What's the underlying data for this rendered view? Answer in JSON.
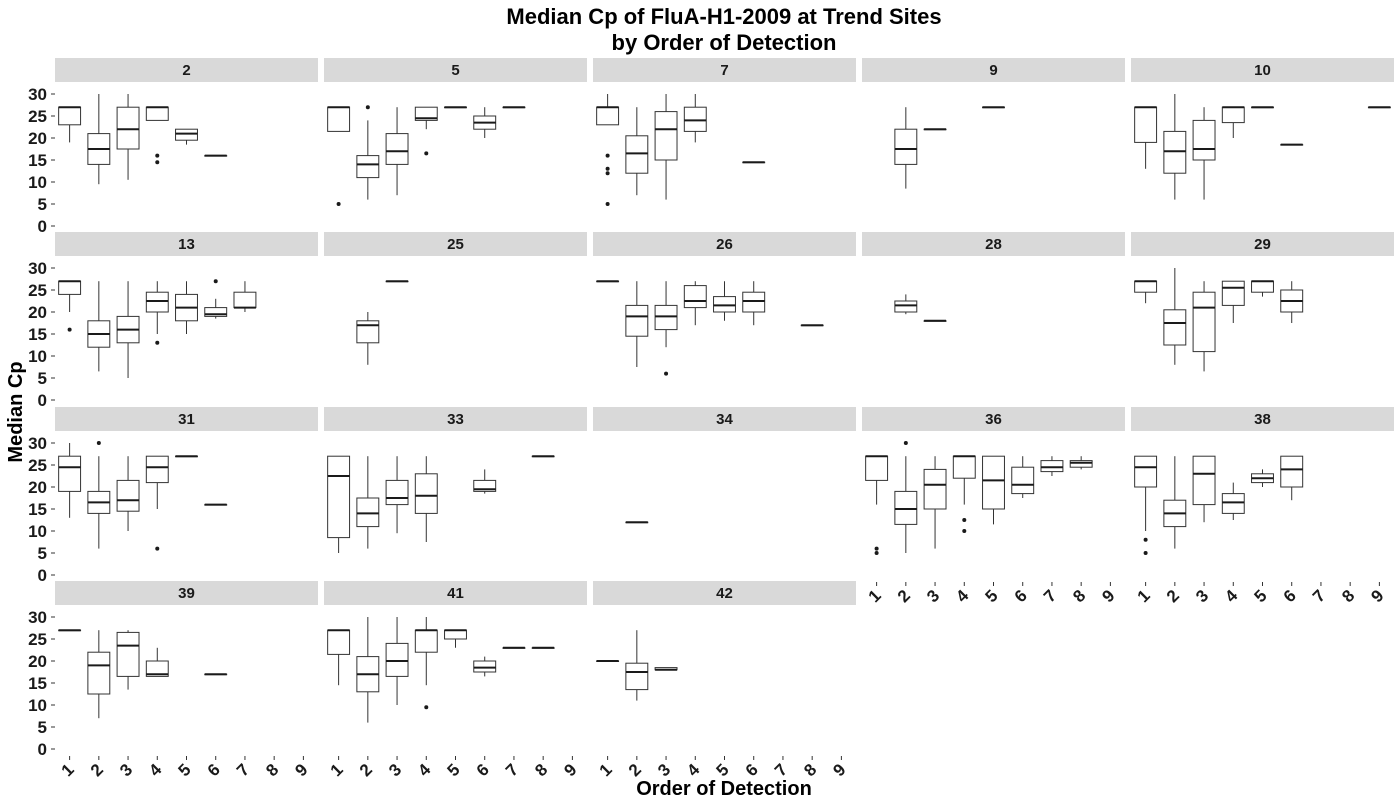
{
  "chart_data": {
    "type": "box",
    "title": "Median Cp of FluA-H1-2009 at Trend Sites",
    "subtitle": "by Order of Detection",
    "xlabel": "Order of Detection",
    "ylabel": "Median Cp",
    "x_ticks": [
      "1",
      "2",
      "3",
      "4",
      "5",
      "6",
      "7",
      "8",
      "9"
    ],
    "y_ticks": [
      0,
      5,
      10,
      15,
      20,
      25,
      30
    ],
    "ylim": [
      0,
      30
    ],
    "facet_layout": "5 columns x 4 rows, facet strips on top",
    "facets": [
      {
        "site": "2",
        "boxes": [
          {
            "x": 1,
            "q1": 23,
            "median": 27,
            "q3": 27,
            "lo": 19,
            "hi": 27,
            "out": []
          },
          {
            "x": 2,
            "q1": 14,
            "median": 17.5,
            "q3": 21,
            "lo": 9.5,
            "hi": 30,
            "out": []
          },
          {
            "x": 3,
            "q1": 17.5,
            "median": 22,
            "q3": 27,
            "lo": 10.5,
            "hi": 30,
            "out": []
          },
          {
            "x": 4,
            "q1": 24,
            "median": 27,
            "q3": 27,
            "lo": 24,
            "hi": 27,
            "out": [
              16,
              14.5
            ]
          },
          {
            "x": 5,
            "q1": 19.5,
            "median": 21,
            "q3": 22,
            "lo": 18.5,
            "hi": 22,
            "out": []
          },
          {
            "x": 6,
            "q1": 16,
            "median": 16,
            "q3": 16,
            "lo": 16,
            "hi": 16,
            "out": []
          }
        ]
      },
      {
        "site": "5",
        "boxes": [
          {
            "x": 1,
            "q1": 21.5,
            "median": 27,
            "q3": 27,
            "lo": 21.5,
            "hi": 27,
            "out": [
              5
            ]
          },
          {
            "x": 2,
            "q1": 11,
            "median": 14,
            "q3": 16,
            "lo": 6,
            "hi": 24,
            "out": [
              27
            ]
          },
          {
            "x": 3,
            "q1": 14,
            "median": 17,
            "q3": 21,
            "lo": 7,
            "hi": 27,
            "out": []
          },
          {
            "x": 4,
            "q1": 24,
            "median": 24.5,
            "q3": 27,
            "lo": 22,
            "hi": 27,
            "out": [
              16.5
            ]
          },
          {
            "x": 5,
            "q1": 27,
            "median": 27,
            "q3": 27,
            "lo": 27,
            "hi": 27,
            "out": []
          },
          {
            "x": 6,
            "q1": 22,
            "median": 23.5,
            "q3": 25,
            "lo": 20,
            "hi": 27,
            "out": []
          },
          {
            "x": 7,
            "q1": 27,
            "median": 27,
            "q3": 27,
            "lo": 27,
            "hi": 27,
            "out": []
          }
        ]
      },
      {
        "site": "7",
        "boxes": [
          {
            "x": 1,
            "q1": 23,
            "median": 27,
            "q3": 27,
            "lo": 23,
            "hi": 30,
            "out": [
              16,
              13,
              12,
              5
            ]
          },
          {
            "x": 2,
            "q1": 12,
            "median": 16.5,
            "q3": 20.5,
            "lo": 7,
            "hi": 27,
            "out": []
          },
          {
            "x": 3,
            "q1": 15,
            "median": 22,
            "q3": 26,
            "lo": 6,
            "hi": 30,
            "out": []
          },
          {
            "x": 4,
            "q1": 21.5,
            "median": 24,
            "q3": 27,
            "lo": 19,
            "hi": 30,
            "out": []
          },
          {
            "x": 6,
            "q1": 14.5,
            "median": 14.5,
            "q3": 14.5,
            "lo": 14.5,
            "hi": 14.5,
            "out": []
          }
        ]
      },
      {
        "site": "9",
        "boxes": [
          {
            "x": 2,
            "q1": 14,
            "median": 17.5,
            "q3": 22,
            "lo": 8.5,
            "hi": 27,
            "out": []
          },
          {
            "x": 3,
            "q1": 22,
            "median": 22,
            "q3": 22,
            "lo": 22,
            "hi": 22,
            "out": []
          },
          {
            "x": 5,
            "q1": 27,
            "median": 27,
            "q3": 27,
            "lo": 27,
            "hi": 27,
            "out": []
          }
        ]
      },
      {
        "site": "10",
        "boxes": [
          {
            "x": 1,
            "q1": 19,
            "median": 27,
            "q3": 27,
            "lo": 13,
            "hi": 27,
            "out": []
          },
          {
            "x": 2,
            "q1": 12,
            "median": 17,
            "q3": 21.5,
            "lo": 6,
            "hi": 30,
            "out": []
          },
          {
            "x": 3,
            "q1": 15,
            "median": 17.5,
            "q3": 24,
            "lo": 6,
            "hi": 27,
            "out": []
          },
          {
            "x": 4,
            "q1": 23.5,
            "median": 27,
            "q3": 27,
            "lo": 20,
            "hi": 27,
            "out": []
          },
          {
            "x": 5,
            "q1": 27,
            "median": 27,
            "q3": 27,
            "lo": 27,
            "hi": 27,
            "out": []
          },
          {
            "x": 6,
            "q1": 18.5,
            "median": 18.5,
            "q3": 18.5,
            "lo": 18.5,
            "hi": 18.5,
            "out": []
          },
          {
            "x": 9,
            "q1": 27,
            "median": 27,
            "q3": 27,
            "lo": 27,
            "hi": 27,
            "out": []
          }
        ]
      },
      {
        "site": "13",
        "boxes": [
          {
            "x": 1,
            "q1": 24,
            "median": 27,
            "q3": 27,
            "lo": 20,
            "hi": 27,
            "out": [
              16
            ]
          },
          {
            "x": 2,
            "q1": 12,
            "median": 15,
            "q3": 18,
            "lo": 6.5,
            "hi": 27,
            "out": []
          },
          {
            "x": 3,
            "q1": 13,
            "median": 16,
            "q3": 19,
            "lo": 5,
            "hi": 27,
            "out": []
          },
          {
            "x": 4,
            "q1": 20,
            "median": 22.5,
            "q3": 24.5,
            "lo": 15,
            "hi": 27,
            "out": [
              13
            ]
          },
          {
            "x": 5,
            "q1": 18,
            "median": 21,
            "q3": 24,
            "lo": 15,
            "hi": 27,
            "out": []
          },
          {
            "x": 6,
            "q1": 19,
            "median": 19.5,
            "q3": 21,
            "lo": 18.5,
            "hi": 23,
            "out": [
              27
            ]
          },
          {
            "x": 7,
            "q1": 21,
            "median": 21,
            "q3": 24.5,
            "lo": 20,
            "hi": 27,
            "out": []
          }
        ]
      },
      {
        "site": "25",
        "boxes": [
          {
            "x": 2,
            "q1": 13,
            "median": 17,
            "q3": 18,
            "lo": 8,
            "hi": 20,
            "out": []
          },
          {
            "x": 3,
            "q1": 27,
            "median": 27,
            "q3": 27,
            "lo": 27,
            "hi": 27,
            "out": []
          }
        ]
      },
      {
        "site": "26",
        "boxes": [
          {
            "x": 1,
            "q1": 27,
            "median": 27,
            "q3": 27,
            "lo": 27,
            "hi": 27,
            "out": []
          },
          {
            "x": 2,
            "q1": 14.5,
            "median": 19,
            "q3": 21.5,
            "lo": 7.5,
            "hi": 27,
            "out": []
          },
          {
            "x": 3,
            "q1": 16,
            "median": 19,
            "q3": 21.5,
            "lo": 12,
            "hi": 27,
            "out": [
              6
            ]
          },
          {
            "x": 4,
            "q1": 21,
            "median": 22.5,
            "q3": 26,
            "lo": 17,
            "hi": 27,
            "out": []
          },
          {
            "x": 5,
            "q1": 20,
            "median": 21.5,
            "q3": 23.5,
            "lo": 18,
            "hi": 27,
            "out": []
          },
          {
            "x": 6,
            "q1": 20,
            "median": 22.5,
            "q3": 24.5,
            "lo": 17,
            "hi": 27,
            "out": []
          },
          {
            "x": 8,
            "q1": 17,
            "median": 17,
            "q3": 17,
            "lo": 17,
            "hi": 17,
            "out": []
          }
        ]
      },
      {
        "site": "28",
        "boxes": [
          {
            "x": 2,
            "q1": 20,
            "median": 21.5,
            "q3": 22.5,
            "lo": 19.5,
            "hi": 24,
            "out": []
          },
          {
            "x": 3,
            "q1": 18,
            "median": 18,
            "q3": 18,
            "lo": 18,
            "hi": 18,
            "out": []
          }
        ]
      },
      {
        "site": "29",
        "boxes": [
          {
            "x": 1,
            "q1": 24.5,
            "median": 27,
            "q3": 27,
            "lo": 22,
            "hi": 27,
            "out": []
          },
          {
            "x": 2,
            "q1": 12.5,
            "median": 17.5,
            "q3": 20.5,
            "lo": 8,
            "hi": 30,
            "out": []
          },
          {
            "x": 3,
            "q1": 11,
            "median": 21,
            "q3": 24.5,
            "lo": 6.5,
            "hi": 27,
            "out": []
          },
          {
            "x": 4,
            "q1": 21.5,
            "median": 25.5,
            "q3": 27,
            "lo": 17.5,
            "hi": 27,
            "out": []
          },
          {
            "x": 5,
            "q1": 24.5,
            "median": 27,
            "q3": 27,
            "lo": 23.5,
            "hi": 27,
            "out": []
          },
          {
            "x": 6,
            "q1": 20,
            "median": 22.5,
            "q3": 25,
            "lo": 17.5,
            "hi": 27,
            "out": []
          }
        ]
      },
      {
        "site": "31",
        "boxes": [
          {
            "x": 1,
            "q1": 19,
            "median": 24.5,
            "q3": 27,
            "lo": 13,
            "hi": 30,
            "out": []
          },
          {
            "x": 2,
            "q1": 14,
            "median": 16.5,
            "q3": 19,
            "lo": 6,
            "hi": 27,
            "out": [
              30
            ]
          },
          {
            "x": 3,
            "q1": 14.5,
            "median": 17,
            "q3": 21.5,
            "lo": 10,
            "hi": 27,
            "out": []
          },
          {
            "x": 4,
            "q1": 21,
            "median": 24.5,
            "q3": 27,
            "lo": 15,
            "hi": 27,
            "out": [
              6
            ]
          },
          {
            "x": 5,
            "q1": 27,
            "median": 27,
            "q3": 27,
            "lo": 27,
            "hi": 27,
            "out": []
          },
          {
            "x": 6,
            "q1": 16,
            "median": 16,
            "q3": 16,
            "lo": 16,
            "hi": 16,
            "out": []
          }
        ]
      },
      {
        "site": "33",
        "boxes": [
          {
            "x": 1,
            "q1": 8.5,
            "median": 22.5,
            "q3": 27,
            "lo": 5,
            "hi": 27,
            "out": []
          },
          {
            "x": 2,
            "q1": 11,
            "median": 14,
            "q3": 17.5,
            "lo": 6,
            "hi": 27,
            "out": []
          },
          {
            "x": 3,
            "q1": 16,
            "median": 17.5,
            "q3": 21.5,
            "lo": 9.5,
            "hi": 27,
            "out": []
          },
          {
            "x": 4,
            "q1": 14,
            "median": 18,
            "q3": 23,
            "lo": 7.5,
            "hi": 27,
            "out": []
          },
          {
            "x": 6,
            "q1": 19,
            "median": 19.5,
            "q3": 21.5,
            "lo": 18.5,
            "hi": 24,
            "out": []
          },
          {
            "x": 8,
            "q1": 27,
            "median": 27,
            "q3": 27,
            "lo": 27,
            "hi": 27,
            "out": []
          }
        ]
      },
      {
        "site": "34",
        "boxes": [
          {
            "x": 2,
            "q1": 12,
            "median": 12,
            "q3": 12,
            "lo": 12,
            "hi": 12,
            "out": []
          }
        ]
      },
      {
        "site": "36",
        "boxes": [
          {
            "x": 1,
            "q1": 21.5,
            "median": 27,
            "q3": 27,
            "lo": 16,
            "hi": 27,
            "out": [
              6,
              5
            ]
          },
          {
            "x": 2,
            "q1": 11.5,
            "median": 15,
            "q3": 19,
            "lo": 5,
            "hi": 27,
            "out": [
              30
            ]
          },
          {
            "x": 3,
            "q1": 15,
            "median": 20.5,
            "q3": 24,
            "lo": 6,
            "hi": 27,
            "out": []
          },
          {
            "x": 4,
            "q1": 22,
            "median": 27,
            "q3": 27,
            "lo": 16,
            "hi": 27,
            "out": [
              12.5,
              10
            ]
          },
          {
            "x": 5,
            "q1": 15,
            "median": 21.5,
            "q3": 27,
            "lo": 11.5,
            "hi": 27,
            "out": []
          },
          {
            "x": 6,
            "q1": 18.5,
            "median": 20.5,
            "q3": 24.5,
            "lo": 17.5,
            "hi": 27,
            "out": []
          },
          {
            "x": 7,
            "q1": 23.5,
            "median": 24.5,
            "q3": 26,
            "lo": 22.5,
            "hi": 27,
            "out": []
          },
          {
            "x": 8,
            "q1": 24.5,
            "median": 25.5,
            "q3": 26,
            "lo": 24,
            "hi": 27,
            "out": []
          }
        ]
      },
      {
        "site": "38",
        "boxes": [
          {
            "x": 1,
            "q1": 20,
            "median": 24.5,
            "q3": 27,
            "lo": 10,
            "hi": 27,
            "out": [
              8,
              5
            ]
          },
          {
            "x": 2,
            "q1": 11,
            "median": 14,
            "q3": 17,
            "lo": 6,
            "hi": 27,
            "out": []
          },
          {
            "x": 3,
            "q1": 16,
            "median": 23,
            "q3": 27,
            "lo": 12,
            "hi": 27,
            "out": []
          },
          {
            "x": 4,
            "q1": 14,
            "median": 16.5,
            "q3": 18.5,
            "lo": 12.5,
            "hi": 21,
            "out": []
          },
          {
            "x": 5,
            "q1": 21,
            "median": 22,
            "q3": 23,
            "lo": 20,
            "hi": 24,
            "out": []
          },
          {
            "x": 6,
            "q1": 20,
            "median": 24,
            "q3": 27,
            "lo": 17,
            "hi": 27,
            "out": []
          }
        ]
      },
      {
        "site": "39",
        "boxes": [
          {
            "x": 1,
            "q1": 27,
            "median": 27,
            "q3": 27,
            "lo": 27,
            "hi": 27,
            "out": []
          },
          {
            "x": 2,
            "q1": 12.5,
            "median": 19,
            "q3": 22,
            "lo": 7,
            "hi": 27,
            "out": []
          },
          {
            "x": 3,
            "q1": 16.5,
            "median": 23.5,
            "q3": 26.5,
            "lo": 13.5,
            "hi": 27,
            "out": []
          },
          {
            "x": 4,
            "q1": 16.5,
            "median": 17,
            "q3": 20,
            "lo": 16.5,
            "hi": 23,
            "out": []
          },
          {
            "x": 6,
            "q1": 17,
            "median": 17,
            "q3": 17,
            "lo": 17,
            "hi": 17,
            "out": []
          }
        ]
      },
      {
        "site": "41",
        "boxes": [
          {
            "x": 1,
            "q1": 21.5,
            "median": 27,
            "q3": 27,
            "lo": 14.5,
            "hi": 27,
            "out": []
          },
          {
            "x": 2,
            "q1": 13,
            "median": 17,
            "q3": 21,
            "lo": 6,
            "hi": 30,
            "out": []
          },
          {
            "x": 3,
            "q1": 16.5,
            "median": 20,
            "q3": 24,
            "lo": 10,
            "hi": 30,
            "out": []
          },
          {
            "x": 4,
            "q1": 22,
            "median": 27,
            "q3": 27,
            "lo": 14.5,
            "hi": 30,
            "out": [
              9.5
            ]
          },
          {
            "x": 5,
            "q1": 25,
            "median": 27,
            "q3": 27,
            "lo": 23,
            "hi": 27,
            "out": []
          },
          {
            "x": 6,
            "q1": 17.5,
            "median": 18.5,
            "q3": 20,
            "lo": 16.5,
            "hi": 21,
            "out": []
          },
          {
            "x": 7,
            "q1": 23,
            "median": 23,
            "q3": 23,
            "lo": 23,
            "hi": 23,
            "out": []
          },
          {
            "x": 8,
            "q1": 23,
            "median": 23,
            "q3": 23,
            "lo": 23,
            "hi": 23,
            "out": []
          }
        ]
      },
      {
        "site": "42",
        "boxes": [
          {
            "x": 1,
            "q1": 20,
            "median": 20,
            "q3": 20,
            "lo": 20,
            "hi": 20,
            "out": []
          },
          {
            "x": 2,
            "q1": 13.5,
            "median": 17.5,
            "q3": 19.5,
            "lo": 11,
            "hi": 27,
            "out": []
          },
          {
            "x": 3,
            "q1": 18,
            "median": 18,
            "q3": 18.5,
            "lo": 18,
            "hi": 18.5,
            "out": []
          }
        ]
      }
    ]
  }
}
